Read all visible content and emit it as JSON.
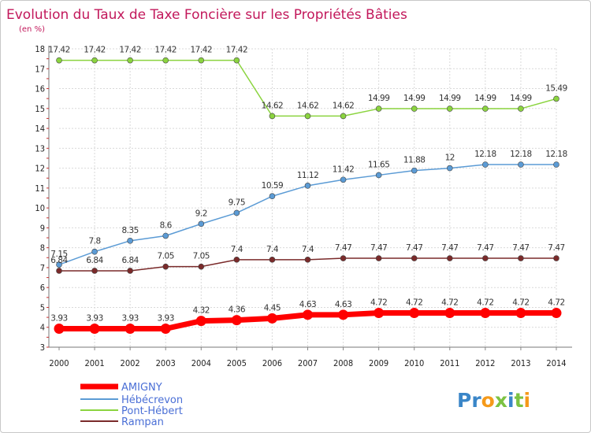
{
  "chart_data": {
    "type": "line",
    "title": "Evolution du Taux de Taxe Foncière sur les Propriétés Bâties",
    "subtitle": "(en %)",
    "x": [
      "2000",
      "2001",
      "2002",
      "2003",
      "2004",
      "2005",
      "2006",
      "2007",
      "2008",
      "2009",
      "2010",
      "2011",
      "2012",
      "2013",
      "2014"
    ],
    "ylim": [
      3,
      18
    ],
    "yticks": [
      "3",
      "4",
      "5",
      "6",
      "7",
      "8",
      "9",
      "10",
      "11",
      "12",
      "13",
      "14",
      "15",
      "16",
      "17",
      "18"
    ],
    "grid": true,
    "legend_position": "bottom-left",
    "series": [
      {
        "name": "AMIGNY",
        "color": "#ff0000",
        "values": [
          3.93,
          3.93,
          3.93,
          3.93,
          4.32,
          4.36,
          4.45,
          4.63,
          4.63,
          4.72,
          4.72,
          4.72,
          4.72,
          4.72,
          4.72
        ],
        "labels": [
          "3.93",
          "3.93",
          "3.93",
          "3.93",
          "4.32",
          "4.36",
          "4.45",
          "4.63",
          "4.63",
          "4.72",
          "4.72",
          "4.72",
          "4.72",
          "4.72",
          "4.72"
        ]
      },
      {
        "name": "Hébécrevon",
        "color": "#5b9bd5",
        "values": [
          7.15,
          7.8,
          8.35,
          8.6,
          9.2,
          9.75,
          10.59,
          11.12,
          11.42,
          11.65,
          11.88,
          12,
          12.18,
          12.18,
          12.18
        ],
        "labels": [
          "7.15",
          "7.8",
          "8.35",
          "8.6",
          "9.2",
          "9.75",
          "10.59",
          "11.12",
          "11.42",
          "11.65",
          "11.88",
          "12",
          "12.18",
          "12.18",
          "12.18"
        ]
      },
      {
        "name": "Pont-Hébert",
        "color": "#8bd43f",
        "values": [
          17.42,
          17.42,
          17.42,
          17.42,
          17.42,
          17.42,
          14.62,
          14.62,
          14.62,
          14.99,
          14.99,
          14.99,
          14.99,
          14.99,
          15.49
        ],
        "labels": [
          "17.42",
          "17.42",
          "17.42",
          "17.42",
          "17.42",
          "17.42",
          "14.62",
          "14.62",
          "14.62",
          "14.99",
          "14.99",
          "14.99",
          "14.99",
          "14.99",
          "15.49"
        ]
      },
      {
        "name": "Rampan",
        "color": "#7a2a2a",
        "values": [
          6.84,
          6.84,
          6.84,
          7.05,
          7.05,
          7.4,
          7.4,
          7.4,
          7.47,
          7.47,
          7.47,
          7.47,
          7.47,
          7.47,
          7.47
        ],
        "labels": [
          "6.84",
          "6.84",
          "6.84",
          "7.05",
          "7.05",
          "7.4",
          "7.4",
          "7.4",
          "7.47",
          "7.47",
          "7.47",
          "7.47",
          "7.47",
          "7.47",
          "7.47"
        ]
      }
    ]
  },
  "logo": {
    "text": "Proxiti",
    "letter_colors": [
      "#3a86c8",
      "#3a86c8",
      "#f59a1a",
      "#7cc242",
      "#3a86c8",
      "#7cc242",
      "#f59a1a"
    ]
  }
}
